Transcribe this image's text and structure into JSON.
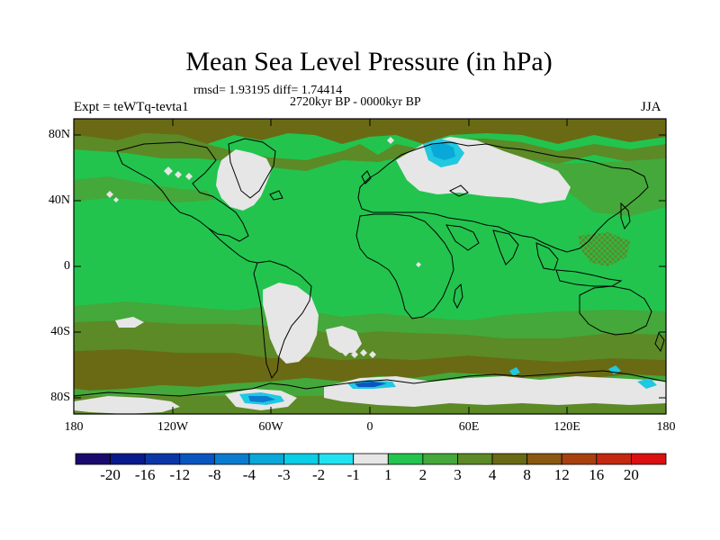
{
  "title": "Mean Sea Level Pressure (in hPa)",
  "stats": "rmsd= 1.93195 diff= 1.74414",
  "period": "2720kyr BP - 0000kyr BP",
  "experiment": "Expt = teWTq-tevta1",
  "season": "JJA",
  "lat_labels": [
    "80N",
    "40N",
    "0",
    "40S",
    "80S"
  ],
  "lon_labels": [
    "180",
    "120W",
    "60W",
    "0",
    "60E",
    "120E",
    "180"
  ],
  "colorbar": {
    "labels": [
      "-20",
      "-16",
      "-12",
      "-8",
      "-4",
      "-3",
      "-2",
      "-1",
      "1",
      "2",
      "3",
      "4",
      "8",
      "12",
      "16",
      "20"
    ],
    "colors": [
      "#1a0a6e",
      "#0a1a8c",
      "#0a36a8",
      "#0a56c0",
      "#0a7cd0",
      "#0aa8d8",
      "#0acde6",
      "#20e2f0",
      "#e6e6e6",
      "#22c44e",
      "#44a83a",
      "#5c8a26",
      "#6a6a14",
      "#8a5810",
      "#a84010",
      "#c42810",
      "#dc1010"
    ]
  },
  "palette": {
    "dark_olive": "#6a6a14",
    "olive": "#5c8a26",
    "mid_green": "#44a83a",
    "green": "#22c44e",
    "white": "#e6e6e6",
    "cyan": "#20c8e0",
    "blue": "#0a7cd0"
  }
}
